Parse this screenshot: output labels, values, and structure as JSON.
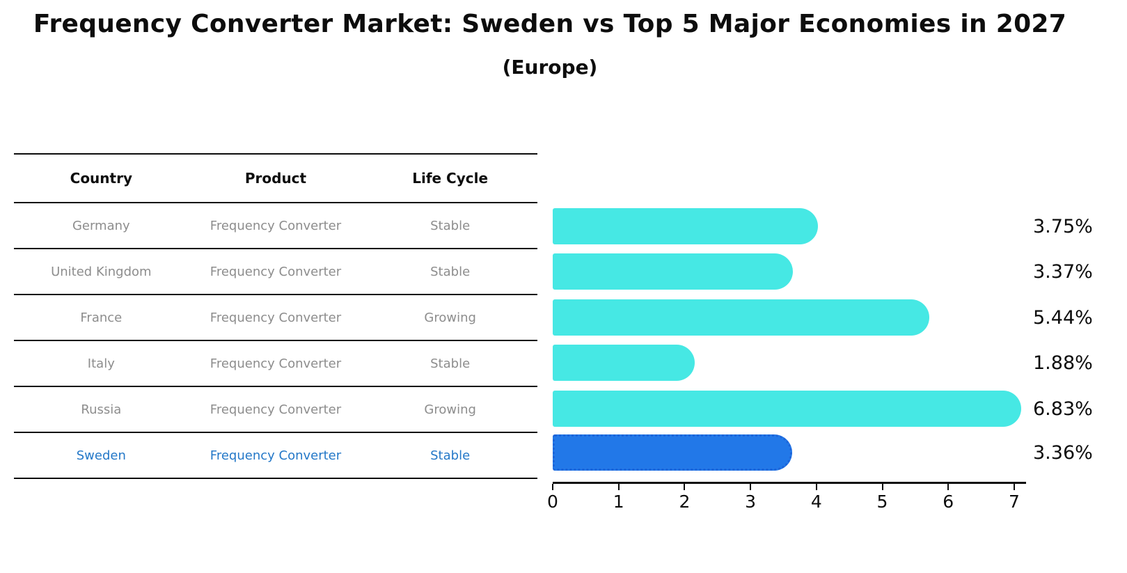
{
  "title": "Frequency Converter Market: Sweden vs Top 5 Major Economies in 2027",
  "subtitle": "(Europe)",
  "table": {
    "headers": [
      "Country",
      "Product",
      "Life Cycle"
    ],
    "rows": [
      {
        "country": "Germany",
        "product": "Frequency Converter",
        "life_cycle": "Stable"
      },
      {
        "country": "United Kingdom",
        "product": "Frequency Converter",
        "life_cycle": "Stable"
      },
      {
        "country": "France",
        "product": "Frequency Converter",
        "life_cycle": "Growing"
      },
      {
        "country": "Italy",
        "product": "Frequency Converter",
        "life_cycle": "Stable"
      },
      {
        "country": "Russia",
        "product": "Frequency Converter",
        "life_cycle": "Growing"
      },
      {
        "country": "Sweden",
        "product": "Frequency Converter",
        "life_cycle": "Stable"
      }
    ]
  },
  "chart_data": {
    "type": "bar",
    "orientation": "horizontal",
    "title": "Frequency Converter Market: Sweden vs Top 5 Major Economies in 2027",
    "subtitle": "(Europe)",
    "categories": [
      "Germany",
      "United Kingdom",
      "France",
      "Italy",
      "Russia",
      "Sweden"
    ],
    "values": [
      3.75,
      3.37,
      5.44,
      1.88,
      6.83,
      3.36
    ],
    "value_labels": [
      "3.75%",
      "3.37%",
      "5.44%",
      "1.88%",
      "6.83%",
      "3.36%"
    ],
    "highlight_category": "Sweden",
    "xlim": [
      0,
      7.2
    ],
    "x_ticks": [
      "0",
      "1",
      "2",
      "3",
      "4",
      "5",
      "6",
      "7"
    ],
    "grid": "off",
    "legend": "none",
    "bar_color": "#46e8e4",
    "highlight_color": "#2278e8",
    "highlight_border_color": "#1c64d9"
  },
  "colors": {
    "bar_cyan": "#46e8e4",
    "bar_blue": "#2278e8",
    "bar_blue_border": "#1c64d9",
    "highlight_text": "#2478c8",
    "table_text_gray": "#8d8d8d",
    "axis_black": "#0d0d0d"
  }
}
